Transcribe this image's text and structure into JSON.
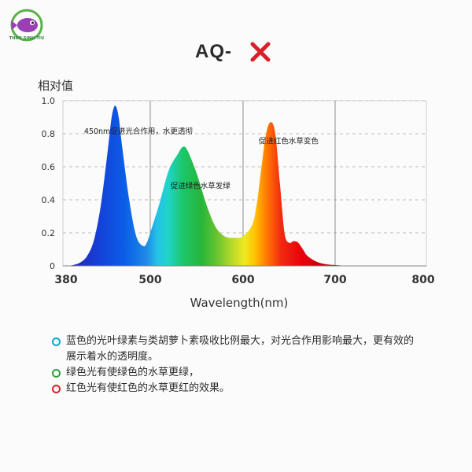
{
  "brand": {
    "logo_text": "THỦY SINH TÍU",
    "icon": "fish-logo-icon",
    "ring_color": "#5ab04a",
    "fish_color": "#9b3fb5"
  },
  "header": {
    "model_prefix": "AQ-",
    "model_icon": "red-x-icon",
    "model_icon_color": "#d8202a"
  },
  "chart_data": {
    "type": "area",
    "title": "",
    "xlabel": "Wavelength(nm)",
    "ylabel": "相对值",
    "xlim": [
      380,
      800
    ],
    "ylim": [
      0,
      1.0
    ],
    "x_ticks": [
      "380",
      "500",
      "600",
      "700",
      "800"
    ],
    "y_ticks": [
      "0",
      "0.2",
      "0.4",
      "0.6",
      "0.8",
      "1.0"
    ],
    "grid": "dashed",
    "series": [
      {
        "fill": "visible-spectrum gradient",
        "x": [
          380,
          390,
          400,
          410,
          420,
          430,
          440,
          445,
          450,
          455,
          460,
          470,
          480,
          490,
          495,
          500,
          510,
          520,
          530,
          535,
          540,
          550,
          560,
          570,
          580,
          590,
          600,
          610,
          615,
          620,
          625,
          630,
          635,
          640,
          645,
          650,
          655,
          660,
          665,
          670,
          680,
          690,
          700,
          720,
          750,
          800
        ],
        "y": [
          0.0,
          0.005,
          0.02,
          0.06,
          0.16,
          0.38,
          0.72,
          0.9,
          0.97,
          0.9,
          0.72,
          0.4,
          0.18,
          0.12,
          0.14,
          0.2,
          0.38,
          0.58,
          0.68,
          0.72,
          0.7,
          0.56,
          0.38,
          0.24,
          0.18,
          0.17,
          0.18,
          0.25,
          0.38,
          0.6,
          0.8,
          0.87,
          0.8,
          0.5,
          0.2,
          0.14,
          0.15,
          0.14,
          0.1,
          0.06,
          0.025,
          0.01,
          0.005,
          0.0,
          0.0,
          0.0
        ]
      }
    ],
    "annotations": [
      {
        "text": "450nm促进光合作用，水更透彻",
        "x": 390,
        "y": 0.8
      },
      {
        "text": "促进绿色水草发绿",
        "x": 510,
        "y": 0.47
      },
      {
        "text": "促进红色水草变色",
        "x": 605,
        "y": 0.74
      }
    ]
  },
  "notes": [
    {
      "text": "蓝色的光叶绿素与类胡萝卜素吸收比例最大，对光合作用影响最大，更有效的展示着水的透明度。",
      "color": "#00a8d0"
    },
    {
      "text": "绿色光有使绿色的水草更绿，",
      "color": "#2e9e3a"
    },
    {
      "text": "红色光有使红色的水草更红的效果。",
      "color": "#d8202a"
    }
  ]
}
